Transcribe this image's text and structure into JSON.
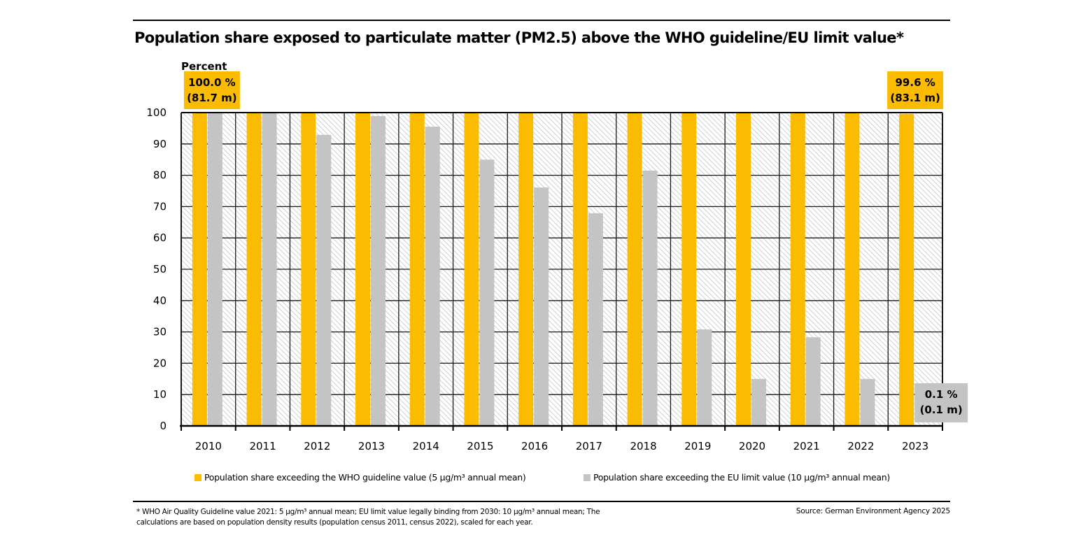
{
  "chart_data": {
    "type": "bar",
    "title": "Population share exposed to particulate matter (PM2.5) above the WHO guideline/EU limit value*",
    "xlabel": "",
    "ylabel": "Percent",
    "ylim": [
      0,
      100
    ],
    "yticks": [
      0,
      10,
      20,
      30,
      40,
      50,
      60,
      70,
      80,
      90,
      100
    ],
    "grid": true,
    "categories": [
      "2010",
      "2011",
      "2012",
      "2013",
      "2014",
      "2015",
      "2016",
      "2017",
      "2018",
      "2019",
      "2020",
      "2021",
      "2022",
      "2023"
    ],
    "series": [
      {
        "name": "Population share exceeding the WHO guideline value (5 µg/m³ annual mean)",
        "color": "#FABB00",
        "values": [
          100,
          100,
          100,
          100,
          100,
          100,
          100,
          100,
          100,
          100,
          100,
          100,
          100,
          99.6
        ]
      },
      {
        "name": "Population share exceeding the EU limit value (10 µg/m³ annual mean)",
        "color": "#C4C4C4",
        "values": [
          100,
          99.8,
          92.9,
          98.9,
          95.5,
          85.0,
          76.1,
          67.9,
          81.5,
          30.8,
          15.0,
          28.3,
          15.0,
          0.1
        ]
      }
    ],
    "annotations": [
      {
        "category": "2010",
        "series": 0,
        "color": "#FABB00",
        "lines": [
          "100.0 %",
          "(81.7 m)"
        ],
        "position": "above-plot"
      },
      {
        "category": "2023",
        "series": 0,
        "color": "#FABB00",
        "lines": [
          "99.6 %",
          "(83.1 m)"
        ],
        "position": "above-plot"
      },
      {
        "category": "2023",
        "series": 1,
        "color": "#C4C4C4",
        "lines": [
          "0.1 %",
          "(0.1 m)"
        ],
        "position": "near-bottom"
      }
    ],
    "legend_position": "bottom",
    "plot_background": "hatched-gray"
  },
  "footnote": {
    "line1": "* WHO Air Quality Guideline value 2021: 5 µg/m³ annual mean; EU limit value legally binding from 2030: 10 µg/m³ annual mean; The",
    "line2": "calculations are based on population density results (population census 2011, census 2022), scaled for each year."
  },
  "source": "Source: German Environment Agency 2025"
}
